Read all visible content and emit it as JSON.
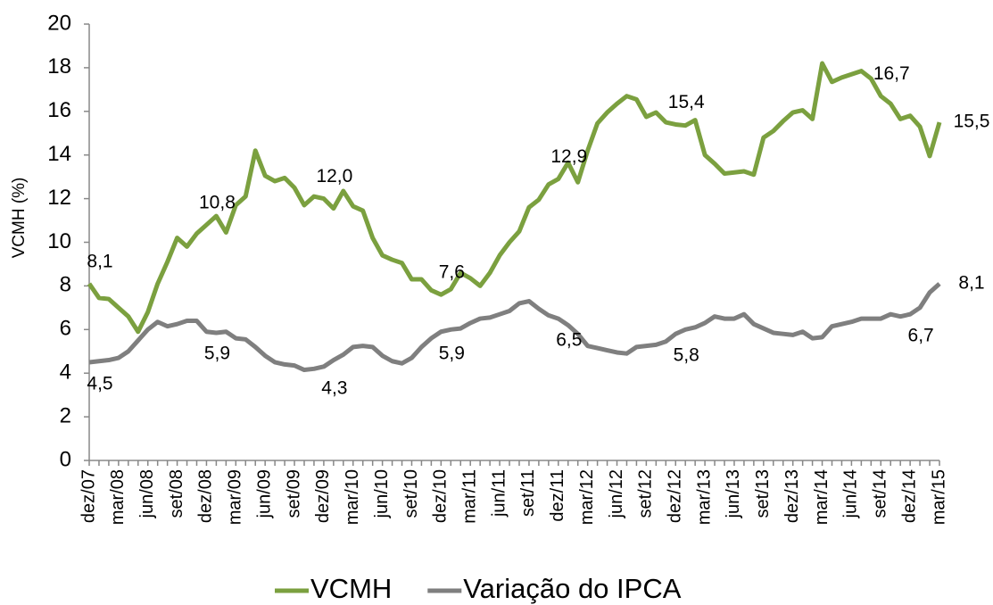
{
  "chart_data": {
    "type": "line",
    "y_label": "VCMH (%)",
    "categories": [
      "dez/07",
      null,
      null,
      "mar/08",
      null,
      null,
      "jun/08",
      null,
      null,
      "set/08",
      null,
      null,
      "dez/08",
      null,
      null,
      "mar/09",
      null,
      null,
      "jun/09",
      null,
      null,
      "set/09",
      null,
      null,
      "dez/09",
      null,
      null,
      "mar/10",
      null,
      null,
      "jun/10",
      null,
      null,
      "set/10",
      null,
      null,
      "dez/10",
      null,
      null,
      "mar/11",
      null,
      null,
      "jun/11",
      null,
      null,
      "set/11",
      null,
      null,
      "dez/11",
      null,
      null,
      "mar/12",
      null,
      null,
      "jun/12",
      null,
      null,
      "set/12",
      null,
      null,
      "dez/12",
      null,
      null,
      "mar/13",
      null,
      null,
      "jun/13",
      null,
      null,
      "set/13",
      null,
      null,
      "dez/13",
      null,
      null,
      "mar/14",
      null,
      null,
      "jun/14",
      null,
      null,
      "set/14",
      null,
      null,
      "dez/14",
      null,
      null,
      "mar/15"
    ],
    "series": [
      {
        "name": "VCMH",
        "color": "#7ba03f",
        "values": [
          8.1,
          7.45,
          7.4,
          7.0,
          6.6,
          5.9,
          6.8,
          8.1,
          9.1,
          10.2,
          9.8,
          10.4,
          10.8,
          11.2,
          10.45,
          11.7,
          12.1,
          14.2,
          13.05,
          12.8,
          12.95,
          12.5,
          11.7,
          12.1,
          12.0,
          11.55,
          12.35,
          11.65,
          11.45,
          10.2,
          9.4,
          9.2,
          9.05,
          8.3,
          8.3,
          7.8,
          7.6,
          7.85,
          8.6,
          8.35,
          8.0,
          8.6,
          9.4,
          10.0,
          10.5,
          11.6,
          11.95,
          12.65,
          12.9,
          13.65,
          12.75,
          14.2,
          15.45,
          15.95,
          16.35,
          16.7,
          16.55,
          15.75,
          15.95,
          15.5,
          15.4,
          15.35,
          15.6,
          14.0,
          13.6,
          13.15,
          13.2,
          13.25,
          13.1,
          14.8,
          15.1,
          15.55,
          15.95,
          16.05,
          15.65,
          18.2,
          17.35,
          17.55,
          17.7,
          17.85,
          17.5,
          16.7,
          16.35,
          15.65,
          15.8,
          15.3,
          13.95,
          15.5
        ],
        "value_labels": [
          "8,1",
          null,
          null,
          null,
          null,
          null,
          null,
          null,
          null,
          null,
          null,
          null,
          "10,8",
          null,
          null,
          null,
          null,
          null,
          null,
          null,
          null,
          null,
          null,
          null,
          "12,0",
          null,
          null,
          null,
          null,
          null,
          null,
          null,
          null,
          null,
          null,
          null,
          "7,6",
          null,
          null,
          null,
          null,
          null,
          null,
          null,
          null,
          null,
          null,
          null,
          "12,9",
          null,
          null,
          null,
          null,
          null,
          null,
          null,
          null,
          null,
          null,
          null,
          "15,4",
          null,
          null,
          null,
          null,
          null,
          null,
          null,
          null,
          null,
          null,
          null,
          null,
          null,
          null,
          null,
          null,
          null,
          null,
          null,
          null,
          "16,7",
          null,
          null,
          null,
          null,
          null,
          "15,5"
        ]
      },
      {
        "name": "Variação do IPCA",
        "color": "#7f7f7f",
        "values": [
          4.5,
          4.55,
          4.6,
          4.7,
          5.0,
          5.5,
          6.0,
          6.35,
          6.15,
          6.25,
          6.4,
          6.4,
          5.9,
          5.85,
          5.9,
          5.6,
          5.55,
          5.2,
          4.8,
          4.5,
          4.4,
          4.35,
          4.15,
          4.2,
          4.3,
          4.6,
          4.85,
          5.2,
          5.25,
          5.2,
          4.8,
          4.55,
          4.45,
          4.7,
          5.2,
          5.6,
          5.9,
          6.0,
          6.05,
          6.3,
          6.5,
          6.55,
          6.7,
          6.85,
          7.2,
          7.3,
          6.95,
          6.65,
          6.5,
          6.2,
          5.8,
          5.25,
          5.15,
          5.05,
          4.95,
          4.9,
          5.2,
          5.25,
          5.3,
          5.45,
          5.8,
          6.0,
          6.1,
          6.3,
          6.6,
          6.5,
          6.5,
          6.7,
          6.25,
          6.05,
          5.85,
          5.8,
          5.75,
          5.9,
          5.6,
          5.65,
          6.15,
          6.25,
          6.35,
          6.5,
          6.5,
          6.5,
          6.7,
          6.6,
          6.7,
          7.0,
          7.7,
          8.1
        ],
        "value_labels": [
          "4,5",
          null,
          null,
          null,
          null,
          null,
          null,
          null,
          null,
          null,
          null,
          null,
          "5,9",
          null,
          null,
          null,
          null,
          null,
          null,
          null,
          null,
          null,
          null,
          null,
          "4,3",
          null,
          null,
          null,
          null,
          null,
          null,
          null,
          null,
          null,
          null,
          null,
          "5,9",
          null,
          null,
          null,
          null,
          null,
          null,
          null,
          null,
          null,
          null,
          null,
          "6,5",
          null,
          null,
          null,
          null,
          null,
          null,
          null,
          null,
          null,
          null,
          null,
          "5,8",
          null,
          null,
          null,
          null,
          null,
          null,
          null,
          null,
          null,
          null,
          null,
          null,
          null,
          null,
          null,
          null,
          null,
          null,
          null,
          null,
          null,
          null,
          null,
          "6,7",
          null,
          null,
          "8,1"
        ]
      }
    ],
    "ylim": [
      0,
      20
    ],
    "yticks": [
      0,
      2,
      4,
      6,
      8,
      10,
      12,
      14,
      16,
      18,
      20
    ],
    "grid": false,
    "legend": "bottom"
  }
}
